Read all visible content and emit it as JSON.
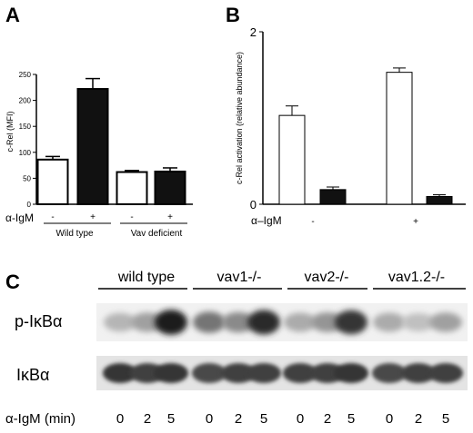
{
  "panels": {
    "A": "A",
    "B": "B",
    "C": "C"
  },
  "chart_data": [
    {
      "type": "bar",
      "panel": "A",
      "ylabel": "c-Rel (MFI)",
      "ylim": [
        0,
        250
      ],
      "yticks": [
        0,
        50,
        100,
        150,
        200,
        250
      ],
      "treatment_label": "α-IgM",
      "categories": [
        "-",
        "+",
        "-",
        "+"
      ],
      "groups": [
        "Wild type",
        "Vav deficient"
      ],
      "values": [
        86,
        222,
        62,
        63
      ],
      "errors": [
        6,
        20,
        3,
        7
      ],
      "fills": [
        "#ffffff",
        "#111111",
        "#ffffff",
        "#111111"
      ]
    },
    {
      "type": "bar",
      "panel": "B",
      "ylabel": "c-Rel activation (relative abundance)",
      "ylim": [
        0,
        2
      ],
      "yticks": [
        0,
        2
      ],
      "treatment_label": "α–IgM",
      "group_labels": [
        "-",
        "+"
      ],
      "values": [
        1.03,
        0.17,
        1.53,
        0.09
      ],
      "errors": [
        0.11,
        0.03,
        0.05,
        0.02
      ],
      "fills": [
        "#ffffff",
        "#111111",
        "#ffffff",
        "#111111"
      ]
    }
  ],
  "blot": {
    "groups": [
      "wild type",
      "vav1-/-",
      "vav2-/-",
      "vav1.2-/-"
    ],
    "rows": [
      "p-IκBα",
      "IκBα"
    ],
    "time_label": "α-IgM (min)",
    "times": [
      "0",
      "2",
      "5",
      "0",
      "2",
      "5",
      "0",
      "2",
      "5",
      "0",
      "2",
      "5"
    ],
    "p_band_intensity": [
      0.25,
      0.35,
      0.95,
      0.55,
      0.45,
      0.9,
      0.3,
      0.4,
      0.85,
      0.3,
      0.2,
      0.35
    ],
    "total_band_intensity": [
      0.85,
      0.8,
      0.85,
      0.75,
      0.8,
      0.8,
      0.8,
      0.8,
      0.85,
      0.75,
      0.8,
      0.8
    ]
  }
}
